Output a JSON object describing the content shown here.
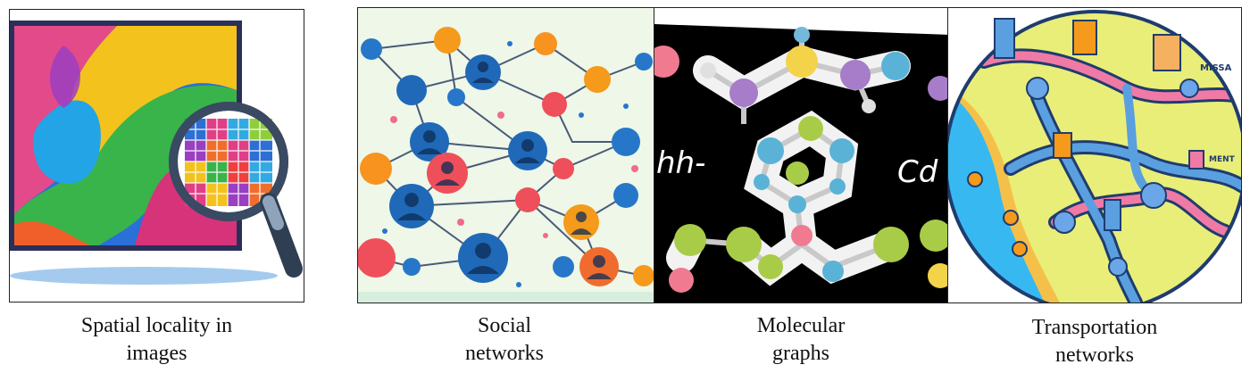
{
  "captions": {
    "spatial": {
      "line1": "Spatial locality in",
      "line2": "images"
    },
    "social": {
      "line1": "Social",
      "line2": "networks"
    },
    "molecular": {
      "line1": "Molecular",
      "line2": "graphs"
    },
    "transport": {
      "line1": "Transportation",
      "line2": "networks"
    }
  },
  "molecule_labels": {
    "left": "hh-",
    "right": "Cd"
  },
  "map_labels": {
    "top": "MISSA",
    "right": "MENT"
  },
  "colors": {
    "social_bg": "#eef7e8",
    "molecule_bg": "#000000",
    "map_land": "#e8ee78",
    "map_sea": "#38b8f0",
    "road_pink": "#f07aa6",
    "road_blue": "#5aa0e0"
  }
}
